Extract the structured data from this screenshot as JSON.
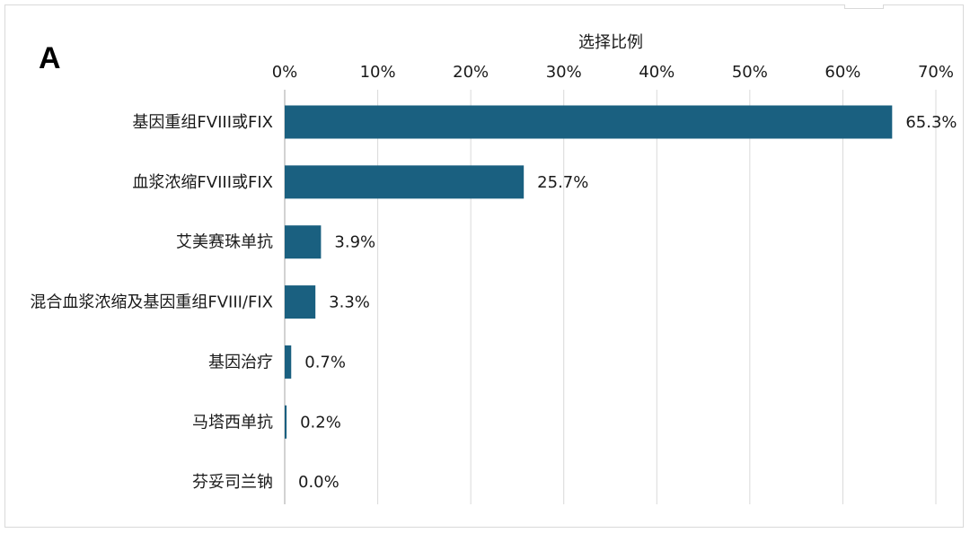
{
  "panel_label": "A",
  "chart_data": {
    "type": "bar",
    "orientation": "horizontal",
    "axis_title": "选择比例",
    "xlim": [
      0,
      70
    ],
    "ticks": [
      0,
      10,
      20,
      30,
      40,
      50,
      60,
      70
    ],
    "tick_suffix": "%",
    "tick_position": "top",
    "grid": true,
    "bar_color": "#1a6080",
    "categories": [
      "基因重组FVIII或FIX",
      "血浆浓缩FVIII或FIX",
      "艾美赛珠单抗",
      "混合血浆浓缩及基因重组FVIII/FIX",
      "基因治疗",
      "马塔西单抗",
      "芬妥司兰钠"
    ],
    "values": [
      65.3,
      25.7,
      3.9,
      3.3,
      0.7,
      0.2,
      0.0
    ],
    "value_labels": [
      "65.3%",
      "25.7%",
      "3.9%",
      "3.3%",
      "0.7%",
      "0.2%",
      "0.0%"
    ]
  }
}
